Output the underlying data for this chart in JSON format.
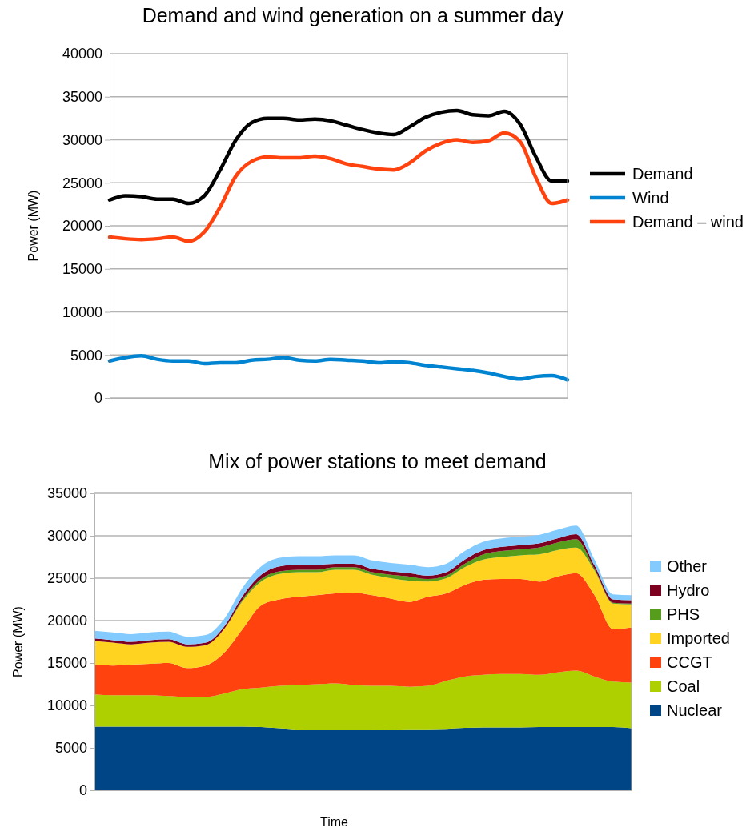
{
  "chart_data": [
    {
      "type": "line",
      "title": "Demand and wind generation on a summer day",
      "ylabel": "Power (MW)",
      "categories": [
        null,
        null,
        null,
        null,
        null,
        null,
        null,
        null,
        null,
        null,
        null,
        null,
        null,
        null,
        null,
        null,
        null,
        null,
        null,
        null,
        null,
        null,
        null,
        null,
        null,
        null,
        null,
        null,
        null,
        null
      ],
      "ylim": [
        0,
        40000
      ],
      "yticks": [
        0,
        5000,
        10000,
        15000,
        20000,
        25000,
        30000,
        35000,
        40000
      ],
      "grid": "y",
      "legend": "right",
      "tick_labels": "y",
      "marker": "none",
      "line_style": "solid",
      "series": [
        {
          "name": "Demand",
          "color": "#000000",
          "values": [
            23000,
            23500,
            23400,
            23100,
            23100,
            22600,
            23500,
            26500,
            30000,
            32000,
            32500,
            32500,
            32300,
            32400,
            32200,
            31700,
            31200,
            30800,
            30600,
            31500,
            32600,
            33200,
            33400,
            32900,
            32800,
            33300,
            31800,
            28000,
            25200,
            25200
          ]
        },
        {
          "name": "Wind",
          "color": "#0084d1",
          "values": [
            4300,
            4700,
            4900,
            4500,
            4300,
            4300,
            4000,
            4100,
            4100,
            4400,
            4500,
            4700,
            4400,
            4300,
            4500,
            4400,
            4300,
            4100,
            4200,
            4100,
            3800,
            3600,
            3400,
            3200,
            2900,
            2500,
            2200,
            2500,
            2600,
            2100
          ]
        },
        {
          "name": "Demand – wind",
          "color": "#ff420e",
          "values": [
            18700,
            18500,
            18400,
            18500,
            18700,
            18200,
            19300,
            22200,
            25800,
            27500,
            28000,
            27900,
            27900,
            28100,
            27800,
            27200,
            26900,
            26600,
            26500,
            27300,
            28700,
            29600,
            30000,
            29700,
            29900,
            30800,
            29800,
            25600,
            22600,
            23000
          ]
        }
      ]
    },
    {
      "type": "area",
      "title": "Mix of power stations to meet demand",
      "xlabel": "Time",
      "ylabel": "Power (MW)",
      "categories": [
        null,
        null,
        null,
        null,
        null,
        null,
        null,
        null,
        null,
        null,
        null,
        null,
        null,
        null,
        null,
        null,
        null,
        null,
        null,
        null,
        null,
        null,
        null,
        null,
        null,
        null,
        null,
        null,
        null,
        null
      ],
      "ylim": [
        0,
        35000
      ],
      "yticks": [
        0,
        5000,
        10000,
        15000,
        20000,
        25000,
        30000,
        35000
      ],
      "grid": "y",
      "legend": "right",
      "tick_labels": "y",
      "stacked": true,
      "series": [
        {
          "name": "Nuclear",
          "color": "#004586",
          "values": [
            7500,
            7500,
            7500,
            7500,
            7500,
            7500,
            7500,
            7500,
            7500,
            7450,
            7300,
            7150,
            7100,
            7100,
            7100,
            7100,
            7150,
            7200,
            7200,
            7250,
            7350,
            7400,
            7400,
            7400,
            7450,
            7450,
            7450,
            7450,
            7450,
            7300
          ]
        },
        {
          "name": "Coal",
          "color": "#aecf00",
          "values": [
            3800,
            3700,
            3700,
            3700,
            3600,
            3500,
            3500,
            3900,
            4400,
            4650,
            5000,
            5250,
            5400,
            5500,
            5300,
            5200,
            5150,
            5000,
            5100,
            5650,
            6050,
            6200,
            6300,
            6300,
            6150,
            6450,
            6650,
            5950,
            5350,
            5400
          ]
        },
        {
          "name": "CCGT",
          "color": "#ff420e",
          "values": [
            3500,
            3500,
            3600,
            3700,
            3900,
            3400,
            3700,
            4800,
            7100,
            9700,
            10200,
            10400,
            10500,
            10600,
            10900,
            10700,
            10300,
            10000,
            10500,
            10300,
            10800,
            11200,
            11200,
            11200,
            11000,
            11300,
            11500,
            9600,
            6200,
            6500
          ]
        },
        {
          "name": "Imported",
          "color": "#ffd320",
          "values": [
            2800,
            2700,
            2400,
            2500,
            2500,
            2500,
            2400,
            2800,
            3300,
            2800,
            3000,
            2900,
            2700,
            2800,
            2700,
            2400,
            2400,
            2500,
            1800,
            1800,
            2100,
            2400,
            2600,
            2800,
            3200,
            3100,
            3000,
            2900,
            3000,
            2700
          ]
        },
        {
          "name": "PHS",
          "color": "#579d1c",
          "values": [
            0,
            0,
            0,
            0,
            0,
            0,
            0,
            0,
            200,
            300,
            300,
            300,
            300,
            300,
            300,
            300,
            400,
            500,
            300,
            300,
            400,
            600,
            700,
            700,
            800,
            900,
            1000,
            200,
            100,
            100
          ]
        },
        {
          "name": "Hydro",
          "color": "#7e0021",
          "values": [
            300,
            300,
            300,
            300,
            300,
            300,
            300,
            300,
            400,
            500,
            600,
            600,
            600,
            400,
            400,
            400,
            400,
            400,
            400,
            400,
            500,
            500,
            500,
            500,
            500,
            500,
            600,
            400,
            400,
            400
          ]
        },
        {
          "name": "Other",
          "color": "#83caff",
          "values": [
            900,
            900,
            900,
            900,
            900,
            900,
            900,
            900,
            1000,
            1000,
            1000,
            1000,
            1000,
            1000,
            1000,
            1000,
            1000,
            1000,
            1000,
            1000,
            1000,
            1000,
            1000,
            1000,
            1000,
            1000,
            1000,
            700,
            600,
            600
          ]
        }
      ]
    }
  ]
}
